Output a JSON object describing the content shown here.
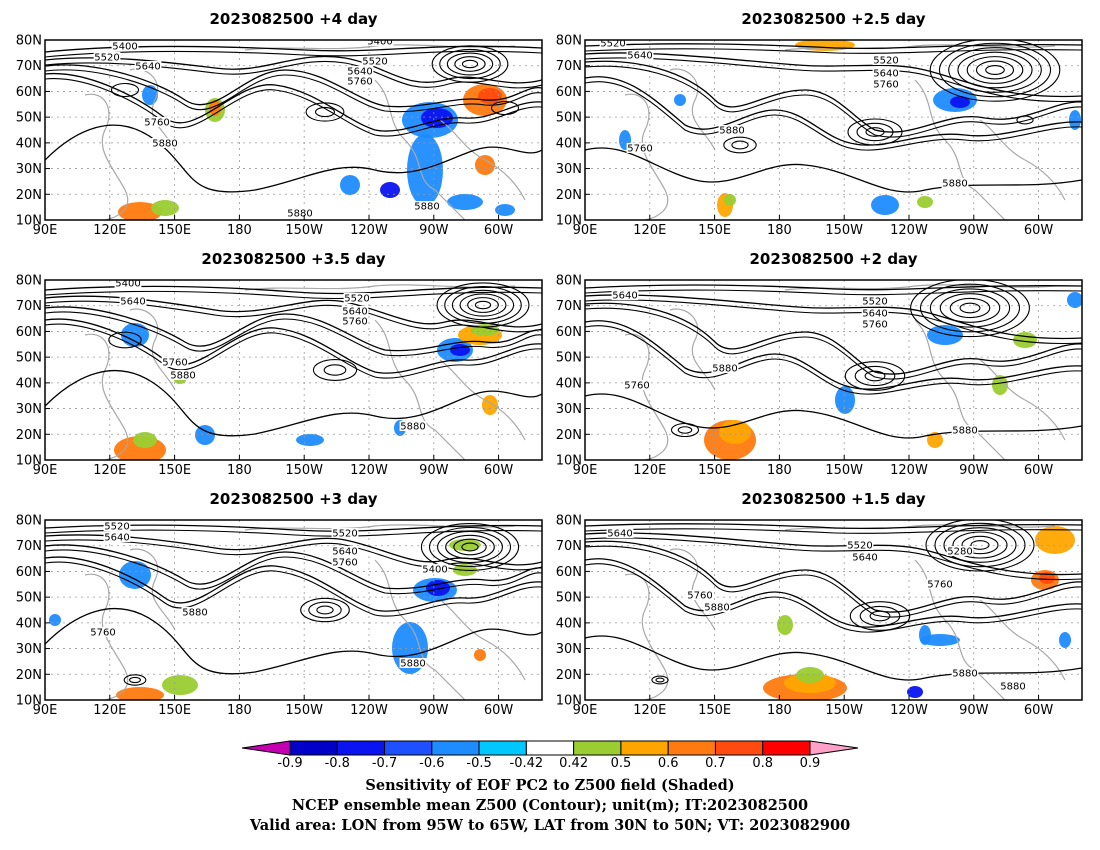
{
  "panels": [
    {
      "id": "p1",
      "title": "2023082500  +4 day"
    },
    {
      "id": "p2",
      "title": "2023082500  +2.5  day"
    },
    {
      "id": "p3",
      "title": "2023082500  +3.5  day"
    },
    {
      "id": "p4",
      "title": "2023082500  +2  day"
    },
    {
      "id": "p5",
      "title": "2023082500  +3  day"
    },
    {
      "id": "p6",
      "title": "2023082500  +1.5  day"
    }
  ],
  "lat_ticks": [
    "80N",
    "70N",
    "60N",
    "50N",
    "40N",
    "30N",
    "20N",
    "10N"
  ],
  "lon_ticks": [
    "90E",
    "120E",
    "150E",
    "180",
    "150W",
    "120W",
    "90W",
    "60W"
  ],
  "contour_labels": {
    "p1": [
      "5400",
      "5520",
      "5640",
      "5400",
      "5520",
      "5640",
      "5760",
      "5760",
      "5880",
      "5880",
      "5880"
    ],
    "p2": [
      "5520",
      "5640",
      "5520",
      "5640",
      "5760",
      "5880",
      "5760",
      "5880"
    ],
    "p3": [
      "5400",
      "5640",
      "5520",
      "5640",
      "5760",
      "5760",
      "5880",
      "5880"
    ],
    "p4": [
      "5640",
      "5520",
      "5640",
      "5760",
      "5880",
      "5760",
      "5880"
    ],
    "p5": [
      "5520",
      "5640",
      "5520",
      "5640",
      "5760",
      "5400",
      "5880",
      "5760",
      "5880"
    ],
    "p6": [
      "5640",
      "5520",
      "5640",
      "5280",
      "5760",
      "5760",
      "5880",
      "5880",
      "5880"
    ]
  },
  "colorbar": {
    "ticks": [
      "-0.9",
      "-0.8",
      "-0.7",
      "-0.6",
      "-0.5",
      "-0.42",
      "0.42",
      "0.5",
      "0.6",
      "0.7",
      "0.8",
      "0.9"
    ],
    "colors": [
      "#c400b0",
      "#0000c8",
      "#0a14f0",
      "#1e50ff",
      "#1e8cff",
      "#00c8ff",
      "#ffffff",
      "#9acd32",
      "#ffa500",
      "#ff7a10",
      "#ff4a10",
      "#ff0000",
      "#ffa0c8"
    ]
  },
  "caption": {
    "line1": "Sensitivity of EOF PC2 to Z500 field (Shaded)",
    "line2": "NCEP ensemble mean Z500 (Contour); unit(m); IT:2023082500",
    "line3": "Valid area: LON from 95W to 65W, LAT from 30N to 50N; VT: 2023082900"
  }
}
